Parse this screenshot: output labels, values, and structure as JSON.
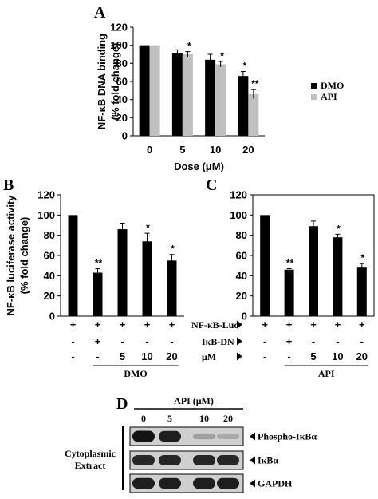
{
  "colors": {
    "dmo": "#000000",
    "api": "#c0c0c0",
    "axis": "#000000",
    "band": "#141414",
    "blot_bg": "#cfcfcf"
  },
  "chart_data": [
    {
      "panel": "A",
      "type": "bar",
      "ylabel": [
        "NF-κB DNA binding",
        "(% fold change)"
      ],
      "xlabel": "Dose (μM)",
      "categories": [
        "0",
        "5",
        "10",
        "20"
      ],
      "ylim": [
        0,
        120
      ],
      "yticks": [
        "0",
        "20",
        "40",
        "60",
        "80",
        "100",
        "120"
      ],
      "legend_position": "right",
      "series": [
        {
          "name": "DMO",
          "values": [
            100,
            91,
            84,
            66
          ],
          "errors": [
            0,
            4,
            6,
            5
          ],
          "stars": [
            "",
            "",
            "",
            "*"
          ]
        },
        {
          "name": "API",
          "values": [
            100,
            90,
            79,
            46
          ],
          "errors": [
            0,
            3,
            3,
            5
          ],
          "stars": [
            "",
            "*",
            "*",
            "**"
          ]
        }
      ]
    },
    {
      "panel": "B",
      "type": "bar",
      "ylabel": [
        "NF-κB luciferase activity",
        "(% fold change)"
      ],
      "ylim": [
        0,
        120
      ],
      "yticks": [
        "0",
        "20",
        "40",
        "60",
        "80",
        "100",
        "120"
      ],
      "values": [
        100,
        43,
        86,
        74,
        55
      ],
      "errors": [
        0,
        4,
        6,
        8,
        6
      ],
      "stars": [
        "",
        "**",
        "",
        "*",
        "*"
      ],
      "rows": [
        [
          "+",
          "+",
          "+",
          "+",
          "+"
        ],
        [
          "-",
          "+",
          "-",
          "-",
          "-"
        ],
        [
          "-",
          "-",
          "5",
          "10",
          "20"
        ]
      ],
      "group_label": "DMO"
    },
    {
      "panel": "C",
      "type": "bar",
      "ylim": [
        0,
        120
      ],
      "yticks": [
        "0",
        "20",
        "40",
        "60",
        "80",
        "100",
        "120"
      ],
      "values": [
        100,
        46,
        89,
        78,
        48
      ],
      "errors": [
        0,
        1,
        5,
        3,
        4
      ],
      "stars": [
        "",
        "**",
        "",
        "*",
        "*"
      ],
      "rows": [
        [
          "+",
          "+",
          "+",
          "+",
          "+"
        ],
        [
          "-",
          "+",
          "-",
          "-",
          "-"
        ],
        [
          "-",
          "-",
          "5",
          "10",
          "20"
        ]
      ],
      "group_label": "API"
    }
  ],
  "row_labels": [
    "NF-κB-Luc",
    "IκB-DN",
    "μM"
  ],
  "blot": {
    "panel": "D",
    "header": "API (μM)",
    "lanes": [
      "0",
      "5",
      "10",
      "20"
    ],
    "side_label": [
      "Cytoplasmic",
      "Extract"
    ],
    "rows": [
      {
        "label": "Phospho-IκBα",
        "intensities": [
          1.0,
          0.95,
          0.25,
          0.2
        ]
      },
      {
        "label": "IκBα",
        "intensities": [
          0.9,
          0.9,
          0.9,
          0.9
        ]
      },
      {
        "label": "GAPDH",
        "intensities": [
          0.95,
          0.95,
          0.95,
          0.95
        ]
      }
    ]
  }
}
